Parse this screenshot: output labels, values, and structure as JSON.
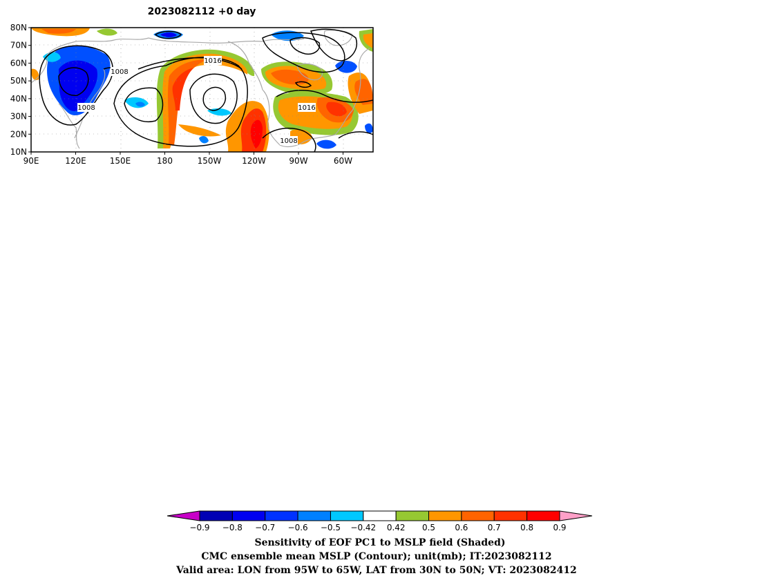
{
  "title": "2023082112 +0 day",
  "map": {
    "lat_labels": [
      "80N",
      "70N",
      "60N",
      "50N",
      "40N",
      "30N",
      "20N",
      "10N"
    ],
    "lon_labels": [
      "90E",
      "120E",
      "150E",
      "180",
      "150W",
      "120W",
      "90W",
      "60W"
    ],
    "contour_labels": [
      "1008",
      "1008",
      "1016",
      "1016",
      "1008"
    ],
    "land_color": "#aaaaaa",
    "contour_color": "#000000"
  },
  "colorbar": {
    "levels": [
      "-0.9",
      "-0.8",
      "-0.7",
      "-0.6",
      "-0.5",
      "-0.42",
      "0.42",
      "0.5",
      "0.6",
      "0.7",
      "0.8",
      "0.9"
    ],
    "colors": [
      "#c800c8",
      "#0000b4",
      "#0000f0",
      "#0032ff",
      "#0080ff",
      "#00c8ff",
      "#ffffff",
      "#96c832",
      "#ff9600",
      "#ff6400",
      "#ff3200",
      "#ff0000",
      "#ffa0c8"
    ]
  },
  "caption": {
    "line1": "Sensitivity of EOF PC1 to MSLP field (Shaded)",
    "line2": "CMC ensemble mean MSLP (Contour); unit(mb); IT:2023082112",
    "line3": "Valid area: LON from 95W to 65W, LAT from 30N to 50N; VT: 2023082412"
  }
}
